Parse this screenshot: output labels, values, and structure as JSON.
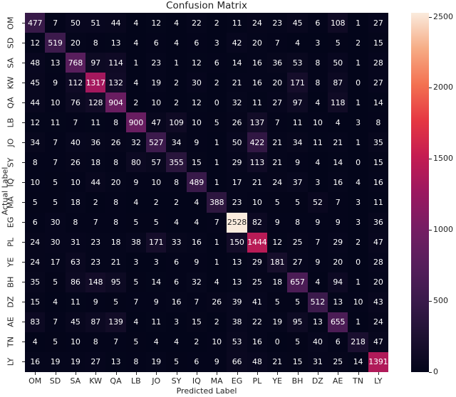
{
  "chart_data": {
    "type": "heatmap",
    "title": "Confusion Matrix",
    "xlabel": "Predicted Label",
    "ylabel": "Actual Label",
    "x_categories": [
      "OM",
      "SD",
      "SA",
      "KW",
      "QA",
      "LB",
      "JO",
      "SY",
      "IQ",
      "MA",
      "EG",
      "PL",
      "YE",
      "BH",
      "DZ",
      "AE",
      "TN",
      "LY"
    ],
    "y_categories": [
      "OM",
      "SD",
      "SA",
      "KW",
      "QA",
      "LB",
      "JO",
      "SY",
      "IQ",
      "MA",
      "EG",
      "PL",
      "YE",
      "BH",
      "DZ",
      "AE",
      "TN",
      "LY"
    ],
    "values": [
      [
        477,
        7,
        50,
        51,
        44,
        4,
        12,
        4,
        22,
        2,
        11,
        24,
        23,
        45,
        6,
        108,
        1,
        27
      ],
      [
        12,
        519,
        20,
        8,
        13,
        4,
        6,
        4,
        6,
        3,
        42,
        20,
        7,
        4,
        3,
        5,
        2,
        15
      ],
      [
        48,
        13,
        768,
        97,
        114,
        1,
        23,
        1,
        12,
        6,
        14,
        16,
        36,
        53,
        8,
        50,
        1,
        28
      ],
      [
        45,
        9,
        112,
        1317,
        132,
        4,
        19,
        2,
        30,
        2,
        21,
        16,
        20,
        171,
        8,
        87,
        0,
        27
      ],
      [
        44,
        10,
        76,
        128,
        904,
        2,
        10,
        2,
        12,
        0,
        32,
        11,
        27,
        97,
        4,
        118,
        1,
        14
      ],
      [
        12,
        11,
        7,
        11,
        8,
        900,
        47,
        109,
        10,
        5,
        26,
        137,
        7,
        11,
        10,
        4,
        3,
        8
      ],
      [
        34,
        7,
        40,
        36,
        26,
        32,
        527,
        34,
        9,
        1,
        50,
        422,
        21,
        34,
        11,
        21,
        1,
        35
      ],
      [
        8,
        7,
        26,
        18,
        8,
        80,
        57,
        355,
        15,
        1,
        29,
        113,
        21,
        9,
        4,
        14,
        0,
        15
      ],
      [
        10,
        5,
        10,
        44,
        20,
        9,
        10,
        8,
        489,
        1,
        17,
        21,
        24,
        37,
        3,
        16,
        4,
        16
      ],
      [
        5,
        5,
        18,
        2,
        8,
        4,
        2,
        2,
        4,
        388,
        23,
        10,
        5,
        5,
        52,
        7,
        3,
        11
      ],
      [
        6,
        30,
        8,
        7,
        8,
        5,
        5,
        4,
        4,
        7,
        2528,
        82,
        9,
        8,
        9,
        9,
        3,
        36
      ],
      [
        24,
        30,
        31,
        23,
        18,
        38,
        171,
        33,
        16,
        1,
        150,
        1444,
        12,
        25,
        7,
        29,
        2,
        47
      ],
      [
        24,
        17,
        63,
        23,
        21,
        3,
        3,
        6,
        9,
        1,
        13,
        29,
        181,
        27,
        9,
        20,
        0,
        28
      ],
      [
        35,
        5,
        86,
        148,
        95,
        5,
        14,
        6,
        32,
        4,
        13,
        25,
        18,
        657,
        4,
        94,
        1,
        20
      ],
      [
        15,
        4,
        11,
        9,
        5,
        7,
        9,
        16,
        7,
        26,
        39,
        41,
        5,
        5,
        512,
        13,
        10,
        43
      ],
      [
        83,
        7,
        45,
        87,
        139,
        4,
        11,
        3,
        15,
        2,
        38,
        22,
        19,
        95,
        13,
        655,
        1,
        24
      ],
      [
        4,
        5,
        10,
        8,
        7,
        5,
        4,
        4,
        2,
        10,
        53,
        16,
        0,
        5,
        40,
        6,
        218,
        47
      ],
      [
        16,
        19,
        19,
        27,
        13,
        8,
        19,
        5,
        6,
        9,
        66,
        48,
        21,
        15,
        31,
        25,
        14,
        1391
      ]
    ],
    "colorbar": {
      "min": 0,
      "max": 2528,
      "ticks": [
        0,
        500,
        1000,
        1500,
        2000,
        2500
      ],
      "colormap": "rocket"
    },
    "grid": false,
    "legend_position": "right (colorbar)"
  }
}
